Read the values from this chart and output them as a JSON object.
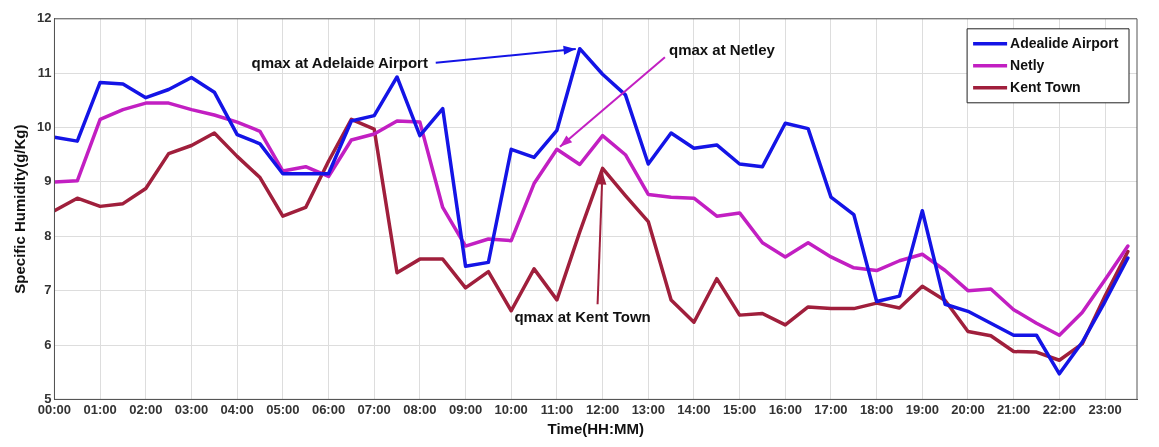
{
  "chart_data": {
    "type": "line",
    "xlabel": "Time(HH:MM)",
    "ylabel": "Specific Humidity(g/Kg)",
    "x": [
      0,
      0.5,
      1,
      1.5,
      2,
      2.5,
      3,
      3.5,
      4,
      4.5,
      5,
      5.5,
      6,
      6.5,
      7,
      7.5,
      8,
      8.5,
      9,
      9.5,
      10,
      10.5,
      11,
      11.5,
      12,
      12.5,
      13,
      13.5,
      14,
      14.5,
      15,
      15.5,
      16,
      16.5,
      17,
      17.5,
      18,
      18.5,
      19,
      19.5,
      20,
      20.5,
      21,
      21.5,
      22,
      22.5,
      23,
      23.5
    ],
    "series": [
      {
        "name": "Adealide Airport",
        "color": "#1414e6",
        "values": [
          9.82,
          9.75,
          10.83,
          10.8,
          10.55,
          10.7,
          10.92,
          10.65,
          9.87,
          9.7,
          9.15,
          9.15,
          9.15,
          10.12,
          10.22,
          10.93,
          9.85,
          10.35,
          7.45,
          7.52,
          9.6,
          9.45,
          9.95,
          11.45,
          10.98,
          10.6,
          9.33,
          9.9,
          9.62,
          9.68,
          9.33,
          9.28,
          10.08,
          9.98,
          8.72,
          8.4,
          6.8,
          6.9,
          8.47,
          6.75,
          6.62,
          6.4,
          6.18,
          6.18,
          5.47,
          6.05,
          6.8,
          7.6
        ]
      },
      {
        "name": "Netly",
        "color": "#c21fc2",
        "values": [
          9.0,
          9.02,
          10.15,
          10.33,
          10.45,
          10.45,
          10.33,
          10.23,
          10.1,
          9.93,
          9.2,
          9.28,
          9.1,
          9.77,
          9.88,
          10.12,
          10.1,
          8.53,
          7.82,
          7.95,
          7.92,
          8.97,
          9.6,
          9.32,
          9.85,
          9.5,
          8.77,
          8.72,
          8.7,
          8.37,
          8.43,
          7.88,
          7.62,
          7.88,
          7.62,
          7.42,
          7.37,
          7.55,
          7.67,
          7.37,
          7.0,
          7.03,
          6.65,
          6.4,
          6.18,
          6.6,
          7.2,
          7.82
        ]
      },
      {
        "name": "Kent Town",
        "color": "#a01f3c",
        "values": [
          8.47,
          8.7,
          8.55,
          8.6,
          8.88,
          9.52,
          9.67,
          9.9,
          9.47,
          9.08,
          8.37,
          8.53,
          9.38,
          10.15,
          9.97,
          7.33,
          7.58,
          7.58,
          7.05,
          7.35,
          6.63,
          7.4,
          6.83,
          8.08,
          9.25,
          8.75,
          8.27,
          6.83,
          6.42,
          7.22,
          6.55,
          6.58,
          6.37,
          6.7,
          6.67,
          6.67,
          6.77,
          6.68,
          7.08,
          6.82,
          6.25,
          6.17,
          5.88,
          5.87,
          5.72,
          6.02,
          6.9,
          7.72
        ]
      }
    ],
    "xlim": [
      0,
      23.7
    ],
    "xticks": [
      {
        "value": 0,
        "label": "00:00"
      },
      {
        "value": 1,
        "label": "01:00"
      },
      {
        "value": 2,
        "label": "02:00"
      },
      {
        "value": 3,
        "label": "03:00"
      },
      {
        "value": 4,
        "label": "04:00"
      },
      {
        "value": 5,
        "label": "05:00"
      },
      {
        "value": 6,
        "label": "06:00"
      },
      {
        "value": 7,
        "label": "07:00"
      },
      {
        "value": 8,
        "label": "08:00"
      },
      {
        "value": 9,
        "label": "09:00"
      },
      {
        "value": 10,
        "label": "10:00"
      },
      {
        "value": 11,
        "label": "11:00"
      },
      {
        "value": 12,
        "label": "12:00"
      },
      {
        "value": 13,
        "label": "13:00"
      },
      {
        "value": 14,
        "label": "14:00"
      },
      {
        "value": 15,
        "label": "15:00"
      },
      {
        "value": 16,
        "label": "16:00"
      },
      {
        "value": 17,
        "label": "17:00"
      },
      {
        "value": 18,
        "label": "18:00"
      },
      {
        "value": 19,
        "label": "19:00"
      },
      {
        "value": 20,
        "label": "20:00"
      },
      {
        "value": 21,
        "label": "21:00"
      },
      {
        "value": 22,
        "label": "22:00"
      },
      {
        "value": 23,
        "label": "23:00"
      }
    ],
    "ylim": [
      5,
      12
    ],
    "yticks": [
      5,
      6,
      7,
      8,
      9,
      10,
      11,
      12
    ],
    "annotations": [
      {
        "text": "qmax at Adelaide Airport",
        "x": 11.5,
        "y": 11.45
      },
      {
        "text": "qmax at Netley",
        "x": 11,
        "y": 9.6
      },
      {
        "text": "qmax at Kent Town",
        "x": 12,
        "y": 9.25
      }
    ],
    "grid": true,
    "legend": "top right",
    "marker": "none",
    "line_style": "solid"
  }
}
